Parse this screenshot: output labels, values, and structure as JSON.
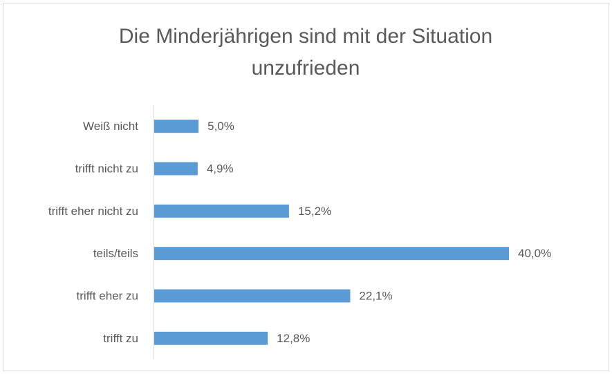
{
  "chart_data": {
    "type": "bar",
    "orientation": "horizontal",
    "title": "Die Minderjährigen sind mit der Situation unzufrieden",
    "categories": [
      "Weiß nicht",
      "trifft nicht zu",
      "trifft eher nicht zu",
      "teils/teils",
      "trifft eher zu",
      "trifft zu"
    ],
    "values": [
      5.0,
      4.9,
      15.2,
      40.0,
      22.1,
      12.8
    ],
    "value_labels": [
      "5,0%",
      "4,9%",
      "15,2%",
      "40,0%",
      "22,1%",
      "12,8%"
    ],
    "color": "#5b9bd5"
  }
}
